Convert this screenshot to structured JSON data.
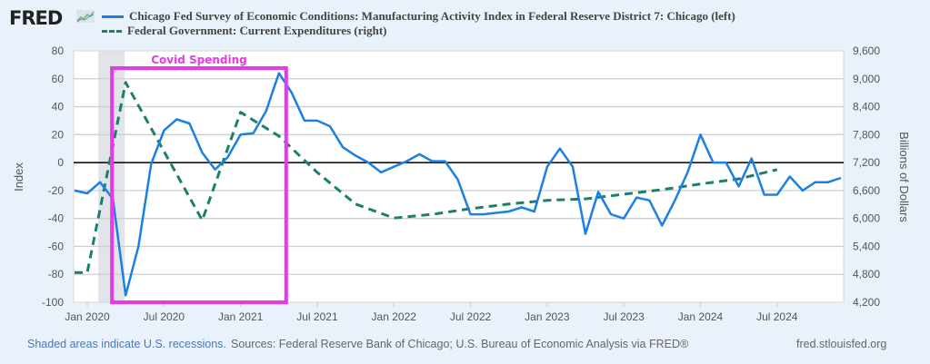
{
  "header": {
    "logo_text": "FRED",
    "logo_icon": "line-chart-icon"
  },
  "footer": {
    "recession_note": "Shaded areas indicate U.S. recessions.",
    "sources": "Sources: Federal Reserve Bank of Chicago; U.S. Bureau of Economic Analysis via FRED®",
    "url": "fred.stlouisfed.org"
  },
  "chart_data": {
    "type": "line",
    "title": "",
    "xlabel": "",
    "ylabel": "Index",
    "ylabel_right": "Billions of Dollars",
    "ylim": [
      -100,
      80
    ],
    "ylim_right": [
      4200,
      9600
    ],
    "yticks": [
      "80",
      "60",
      "40",
      "20",
      "0",
      "-20",
      "-40",
      "-60",
      "-80",
      "-100"
    ],
    "yticks_right": [
      "9,600",
      "9,000",
      "8,400",
      "7,800",
      "7,200",
      "6,600",
      "6,000",
      "5,400",
      "4,800",
      "4,200"
    ],
    "xticks": [
      "Jan 2020",
      "Jul 2020",
      "Jan 2021",
      "Jul 2021",
      "Jan 2022",
      "Jul 2022",
      "Jan 2023",
      "Jul 2023",
      "Jan 2024",
      "Jul 2024"
    ],
    "xlim": [
      "2019-12",
      "2024-12"
    ],
    "grid": true,
    "legend_position": "top",
    "recessions": [
      {
        "start": "2020-02",
        "end": "2020-04"
      }
    ],
    "annotations": [
      {
        "text": "Covid Spending",
        "type": "box",
        "x_start": "2020-03",
        "x_end": "2021-04",
        "color": "#e838e8"
      }
    ],
    "series": [
      {
        "name": "Chicago Fed Survey of Economic Conditions: Manufacturing Activity Index in Federal Reserve District 7: Chicago (left)",
        "axis": "left",
        "color": "#1a80e5",
        "style": "solid",
        "x": [
          "2019-12",
          "2020-01",
          "2020-02",
          "2020-03",
          "2020-04",
          "2020-05",
          "2020-06",
          "2020-07",
          "2020-08",
          "2020-09",
          "2020-10",
          "2020-11",
          "2020-12",
          "2021-01",
          "2021-02",
          "2021-03",
          "2021-04",
          "2021-05",
          "2021-06",
          "2021-07",
          "2021-08",
          "2021-09",
          "2021-10",
          "2021-11",
          "2021-12",
          "2022-01",
          "2022-02",
          "2022-03",
          "2022-04",
          "2022-05",
          "2022-06",
          "2022-07",
          "2022-08",
          "2022-09",
          "2022-10",
          "2022-11",
          "2022-12",
          "2023-01",
          "2023-02",
          "2023-03",
          "2023-04",
          "2023-05",
          "2023-06",
          "2023-07",
          "2023-08",
          "2023-09",
          "2023-10",
          "2023-11",
          "2023-12",
          "2024-01",
          "2024-02",
          "2024-03",
          "2024-04",
          "2024-05",
          "2024-06",
          "2024-07",
          "2024-08",
          "2024-09",
          "2024-10",
          "2024-11",
          "2024-12"
        ],
        "values": [
          -20,
          -22,
          -14,
          -26,
          -95,
          -60,
          -1,
          23,
          31,
          28,
          7,
          -5,
          4,
          20,
          21,
          37,
          64,
          50,
          30,
          30,
          26,
          11,
          5,
          0,
          -7,
          -3,
          1,
          6,
          1,
          1,
          -12,
          -37,
          -37,
          -36,
          -35,
          -32,
          -35,
          -3,
          10,
          -3,
          -51,
          -21,
          -37,
          -40,
          -25,
          -27,
          -45,
          -27,
          -7,
          20,
          0,
          0,
          -17,
          3,
          -23,
          -23,
          -10,
          -20,
          -14,
          -14,
          -11
        ]
      },
      {
        "name": "Federal Government: Current Expenditures (right)",
        "axis": "right",
        "color": "#1a7f6e",
        "style": "dashed",
        "x": [
          "2019-12",
          "2020-01",
          "2020-04",
          "2020-07",
          "2020-10",
          "2021-01",
          "2021-04",
          "2021-07",
          "2021-10",
          "2022-01",
          "2022-04",
          "2022-07",
          "2022-10",
          "2023-01",
          "2023-04",
          "2023-07",
          "2023-10",
          "2024-01",
          "2024-04",
          "2024-07"
        ],
        "values": [
          4840,
          4840,
          8920,
          7440,
          5960,
          8280,
          7770,
          6990,
          6310,
          6010,
          6090,
          6210,
          6310,
          6390,
          6420,
          6520,
          6620,
          6740,
          6850,
          7050
        ]
      }
    ]
  }
}
